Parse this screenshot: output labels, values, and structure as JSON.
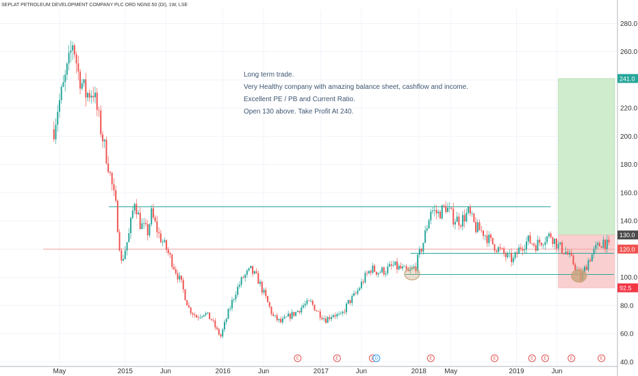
{
  "chart_data": {
    "type": "candlestick",
    "title": "SEPLAT PETROLEUM DEVELOPMENT COMPANY PLC ORD NGN0.50 (DI), 1W, LSE",
    "ylim": [
      35,
      290
    ],
    "y_ticks": [
      40,
      60,
      80,
      100,
      120,
      140,
      160,
      180,
      200,
      220,
      240,
      260,
      280
    ],
    "y_tick_labels": [
      "40.0",
      "60.0",
      "80.0",
      "100.0",
      "120.0",
      "140.0",
      "160.0",
      "180.0",
      "200.0",
      "220.0",
      "240.0",
      "260.0",
      "280.0"
    ],
    "x_ticks": [
      {
        "label": "May",
        "date": "2014-05-01"
      },
      {
        "label": "2015",
        "date": "2015-01-01"
      },
      {
        "label": "Jun",
        "date": "2015-06-01"
      },
      {
        "label": "2016",
        "date": "2016-01-01"
      },
      {
        "label": "Jun",
        "date": "2016-06-01"
      },
      {
        "label": "2017",
        "date": "2017-01-01"
      },
      {
        "label": "Jun",
        "date": "2017-06-01"
      },
      {
        "label": "2018",
        "date": "2018-01-01"
      },
      {
        "label": "May",
        "date": "2018-05-01"
      },
      {
        "label": "2019",
        "date": "2019-01-01"
      },
      {
        "label": "Jun",
        "date": "2019-06-01"
      }
    ],
    "price_path": [
      {
        "date": "2014-04-10",
        "close": 205
      },
      {
        "date": "2014-04-24",
        "close": 220
      },
      {
        "date": "2014-05-15",
        "close": 235
      },
      {
        "date": "2014-06-05",
        "close": 252
      },
      {
        "date": "2014-06-20",
        "close": 268
      },
      {
        "date": "2014-07-10",
        "close": 245
      },
      {
        "date": "2014-08-07",
        "close": 230
      },
      {
        "date": "2014-09-04",
        "close": 232
      },
      {
        "date": "2014-10-02",
        "close": 205
      },
      {
        "date": "2014-10-30",
        "close": 180
      },
      {
        "date": "2014-11-27",
        "close": 150
      },
      {
        "date": "2014-12-18",
        "close": 110
      },
      {
        "date": "2015-01-15",
        "close": 130
      },
      {
        "date": "2015-02-05",
        "close": 155
      },
      {
        "date": "2015-02-26",
        "close": 138
      },
      {
        "date": "2015-03-26",
        "close": 132
      },
      {
        "date": "2015-04-09",
        "close": 145
      },
      {
        "date": "2015-05-07",
        "close": 130
      },
      {
        "date": "2015-06-04",
        "close": 120
      },
      {
        "date": "2015-07-02",
        "close": 108
      },
      {
        "date": "2015-07-30",
        "close": 95
      },
      {
        "date": "2015-08-27",
        "close": 78
      },
      {
        "date": "2015-09-24",
        "close": 72
      },
      {
        "date": "2015-10-22",
        "close": 75
      },
      {
        "date": "2015-11-19",
        "close": 70
      },
      {
        "date": "2015-12-10",
        "close": 62
      },
      {
        "date": "2015-12-24",
        "close": 58
      },
      {
        "date": "2016-01-21",
        "close": 75
      },
      {
        "date": "2016-02-18",
        "close": 90
      },
      {
        "date": "2016-03-17",
        "close": 100
      },
      {
        "date": "2016-04-14",
        "close": 105
      },
      {
        "date": "2016-05-12",
        "close": 98
      },
      {
        "date": "2016-06-09",
        "close": 85
      },
      {
        "date": "2016-07-07",
        "close": 72
      },
      {
        "date": "2016-08-04",
        "close": 68
      },
      {
        "date": "2016-09-01",
        "close": 72
      },
      {
        "date": "2016-09-29",
        "close": 75
      },
      {
        "date": "2016-10-27",
        "close": 80
      },
      {
        "date": "2016-11-24",
        "close": 82
      },
      {
        "date": "2016-12-22",
        "close": 75
      },
      {
        "date": "2017-01-19",
        "close": 70
      },
      {
        "date": "2017-02-16",
        "close": 74
      },
      {
        "date": "2017-03-16",
        "close": 72
      },
      {
        "date": "2017-04-13",
        "close": 82
      },
      {
        "date": "2017-05-11",
        "close": 88
      },
      {
        "date": "2017-06-08",
        "close": 98
      },
      {
        "date": "2017-07-06",
        "close": 106
      },
      {
        "date": "2017-08-03",
        "close": 104
      },
      {
        "date": "2017-08-31",
        "close": 105
      },
      {
        "date": "2017-09-28",
        "close": 108
      },
      {
        "date": "2017-10-26",
        "close": 106
      },
      {
        "date": "2017-11-23",
        "close": 103
      },
      {
        "date": "2017-12-21",
        "close": 108
      },
      {
        "date": "2018-01-18",
        "close": 125
      },
      {
        "date": "2018-02-15",
        "close": 148
      },
      {
        "date": "2018-03-15",
        "close": 145
      },
      {
        "date": "2018-04-12",
        "close": 150
      },
      {
        "date": "2018-05-10",
        "close": 142
      },
      {
        "date": "2018-06-07",
        "close": 140
      },
      {
        "date": "2018-07-05",
        "close": 146
      },
      {
        "date": "2018-08-02",
        "close": 135
      },
      {
        "date": "2018-08-30",
        "close": 132
      },
      {
        "date": "2018-09-27",
        "close": 125
      },
      {
        "date": "2018-10-25",
        "close": 120
      },
      {
        "date": "2018-11-22",
        "close": 115
      },
      {
        "date": "2018-12-20",
        "close": 112
      },
      {
        "date": "2019-01-17",
        "close": 122
      },
      {
        "date": "2019-02-14",
        "close": 126
      },
      {
        "date": "2019-03-14",
        "close": 123
      },
      {
        "date": "2019-04-11",
        "close": 127
      },
      {
        "date": "2019-05-09",
        "close": 130
      },
      {
        "date": "2019-06-06",
        "close": 122
      },
      {
        "date": "2019-07-04",
        "close": 118
      },
      {
        "date": "2019-08-01",
        "close": 110
      },
      {
        "date": "2019-08-29",
        "close": 99
      },
      {
        "date": "2019-09-26",
        "close": 112
      },
      {
        "date": "2019-10-24",
        "close": 120
      },
      {
        "date": "2019-11-21",
        "close": 126
      },
      {
        "date": "2019-12-12",
        "close": 121
      }
    ],
    "horizontal_lines": [
      {
        "name": "resistance",
        "value": 150,
        "from": "2014-11-01",
        "to": "2019-05-09",
        "color": "#26a69a"
      },
      {
        "name": "support",
        "value": 117,
        "from": "2017-12-01",
        "to": "2019-12-31",
        "color": "#26a69a"
      },
      {
        "name": "support-low",
        "value": 102,
        "from": "2017-11-10",
        "to": "2019-12-31",
        "color": "#26a69a"
      },
      {
        "name": "current-price",
        "value": 120,
        "from": "2014-03-01",
        "to": "2019-12-31",
        "color": "#f4a3a3"
      }
    ],
    "position": {
      "type": "long",
      "start": "2019-06-06",
      "end": "2019-12-31",
      "entry": 130.0,
      "target": 241.0,
      "stop": 92.5,
      "profit_color": "#cfeccd",
      "loss_color": "#f9cfcf"
    },
    "highlights": [
      {
        "name": "accumulation-zone",
        "date": "2017-12-07",
        "value": 102.5,
        "color": "#c8a27a",
        "fill": "rgba(200,162,122,0.35)"
      },
      {
        "name": "bottom-zone",
        "date": "2019-08-22",
        "value": 101,
        "color": "#c8a27a",
        "fill": "rgba(200,162,122,0.8)"
      }
    ],
    "events": [
      {
        "date": "2016-10-06",
        "label": "E"
      },
      {
        "date": "2017-03-02",
        "label": "E"
      },
      {
        "date": "2017-07-13",
        "label": "E"
      },
      {
        "date": "2017-07-27",
        "label": "D"
      },
      {
        "date": "2018-02-15",
        "label": "E"
      },
      {
        "date": "2018-10-11",
        "label": "E"
      },
      {
        "date": "2019-02-28",
        "label": "E"
      },
      {
        "date": "2019-04-18",
        "label": "E"
      },
      {
        "date": "2019-07-25",
        "label": "E"
      },
      {
        "date": "2019-11-14",
        "label": "E"
      }
    ],
    "price_badges": [
      {
        "value": 241.0,
        "label": "241.0",
        "color": "#26a69a"
      },
      {
        "value": 130.0,
        "label": "130.0",
        "color": "#4a4a4a"
      },
      {
        "value": 120.0,
        "label": "120.0",
        "color": "#ef5350"
      },
      {
        "value": 92.5,
        "label": "92.5",
        "color": "#f23645"
      }
    ],
    "annotation_lines": [
      "Long term trade.",
      "Very Healthy company with amazing balance sheet,  cashflow and income.",
      "Excellent PE / PB and Current Ratio.",
      "Open 130 above. Take Profit At 240."
    ],
    "grid": true,
    "up_color": "#26a69a",
    "down_color": "#ef5350"
  }
}
